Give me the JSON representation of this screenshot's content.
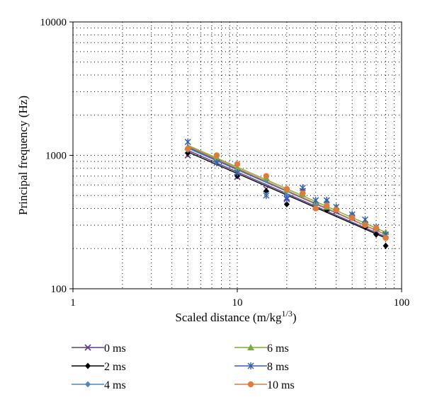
{
  "chart_data": {
    "type": "scatter",
    "xlabel": "Scaled distance (m/kg",
    "xlabel_sup": "1/3",
    "xlabel_end": ")",
    "ylabel": "Principal frequency (Hz)",
    "xscale": "log",
    "yscale": "log",
    "xlim": [
      1,
      100
    ],
    "ylim": [
      100,
      10000
    ],
    "xticks": [
      1,
      10,
      100
    ],
    "xtick_labels": [
      "1",
      "10",
      "100"
    ],
    "yticks": [
      100,
      1000,
      10000
    ],
    "ytick_labels": [
      "100",
      "1000",
      "10000"
    ],
    "grid": "dotted",
    "legend_position": "bottom",
    "series": [
      {
        "name": "0 ms",
        "color": "#5c3a8a",
        "marker": "x",
        "x": [
          5,
          10,
          15,
          20,
          25,
          30,
          35,
          40,
          50,
          60,
          70,
          80
        ],
        "y": [
          1000,
          690,
          560,
          480,
          540,
          410,
          400,
          380,
          340,
          300,
          270,
          250
        ],
        "trend": [
          [
            5,
            1090
          ],
          [
            80,
            245
          ]
        ]
      },
      {
        "name": "2 ms",
        "color": "#000000",
        "marker": "diamond",
        "x": [
          5,
          10,
          15,
          20,
          25,
          30,
          35,
          40,
          50,
          60,
          70,
          80
        ],
        "y": [
          1040,
          700,
          540,
          430,
          530,
          440,
          390,
          390,
          340,
          290,
          255,
          210
        ],
        "trend": [
          [
            5,
            1060
          ],
          [
            80,
            240
          ]
        ]
      },
      {
        "name": "4 ms",
        "color": "#4a86c8",
        "marker": "diamond",
        "x": [
          5,
          7.5,
          10,
          15,
          20,
          25,
          30,
          35,
          40,
          50,
          60,
          70,
          80
        ],
        "y": [
          1100,
          900,
          760,
          650,
          500,
          520,
          430,
          450,
          400,
          360,
          310,
          280,
          260
        ],
        "trend": [
          [
            5,
            1130
          ],
          [
            80,
            255
          ]
        ]
      },
      {
        "name": "6 ms",
        "color": "#7aac3e",
        "marker": "triangle",
        "x": [
          5,
          7.5,
          10,
          15,
          20,
          25,
          30,
          35,
          40,
          50,
          60,
          70,
          80
        ],
        "y": [
          1150,
          960,
          800,
          680,
          550,
          510,
          450,
          410,
          410,
          350,
          320,
          285,
          265
        ],
        "trend": [
          [
            5,
            1190
          ],
          [
            80,
            265
          ]
        ]
      },
      {
        "name": "8 ms",
        "color": "#3a5fb0",
        "marker": "star",
        "x": [
          5,
          7.5,
          10,
          15,
          20,
          25,
          30,
          35,
          40,
          50,
          60,
          70,
          80
        ],
        "y": [
          1260,
          880,
          740,
          500,
          470,
          570,
          460,
          460,
          410,
          360,
          330,
          290,
          255
        ],
        "trend": [
          [
            5,
            1150
          ],
          [
            80,
            255
          ]
        ]
      },
      {
        "name": "10 ms",
        "color": "#e07b39",
        "marker": "circle",
        "x": [
          5,
          7.5,
          10,
          15,
          20,
          25,
          30,
          35,
          40,
          50,
          60,
          70,
          80
        ],
        "y": [
          1120,
          1000,
          860,
          700,
          560,
          520,
          400,
          420,
          390,
          340,
          300,
          285,
          240
        ],
        "trend": [
          [
            5,
            1170
          ],
          [
            80,
            255
          ]
        ]
      }
    ]
  }
}
